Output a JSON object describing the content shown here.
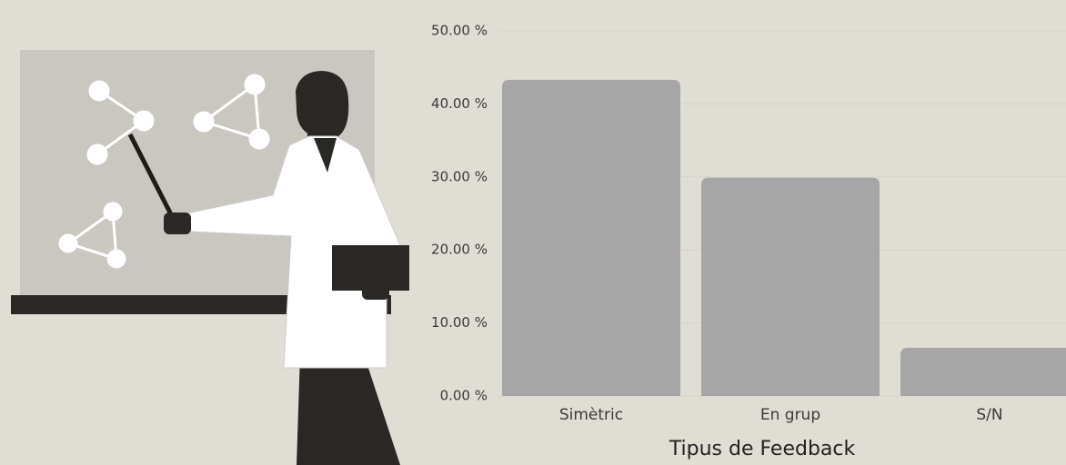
{
  "chart_data": {
    "type": "bar",
    "x_label": "Tipus de Feedback",
    "categories": [
      "Simètric",
      "En grup",
      "S/N"
    ],
    "values": [
      43.3,
      29.9,
      6.6
    ],
    "color": "#a6a6a6",
    "ylim": [
      0,
      50
    ],
    "yticks": [
      {
        "value": 0,
        "label": "0.00 %"
      },
      {
        "value": 10,
        "label": "10.00 %"
      },
      {
        "value": 20,
        "label": "20.00 %"
      },
      {
        "value": 30,
        "label": "30.00 %"
      },
      {
        "value": 40,
        "label": "40.00 %"
      },
      {
        "value": 50,
        "label": "50.00 %"
      }
    ],
    "grid": true
  }
}
